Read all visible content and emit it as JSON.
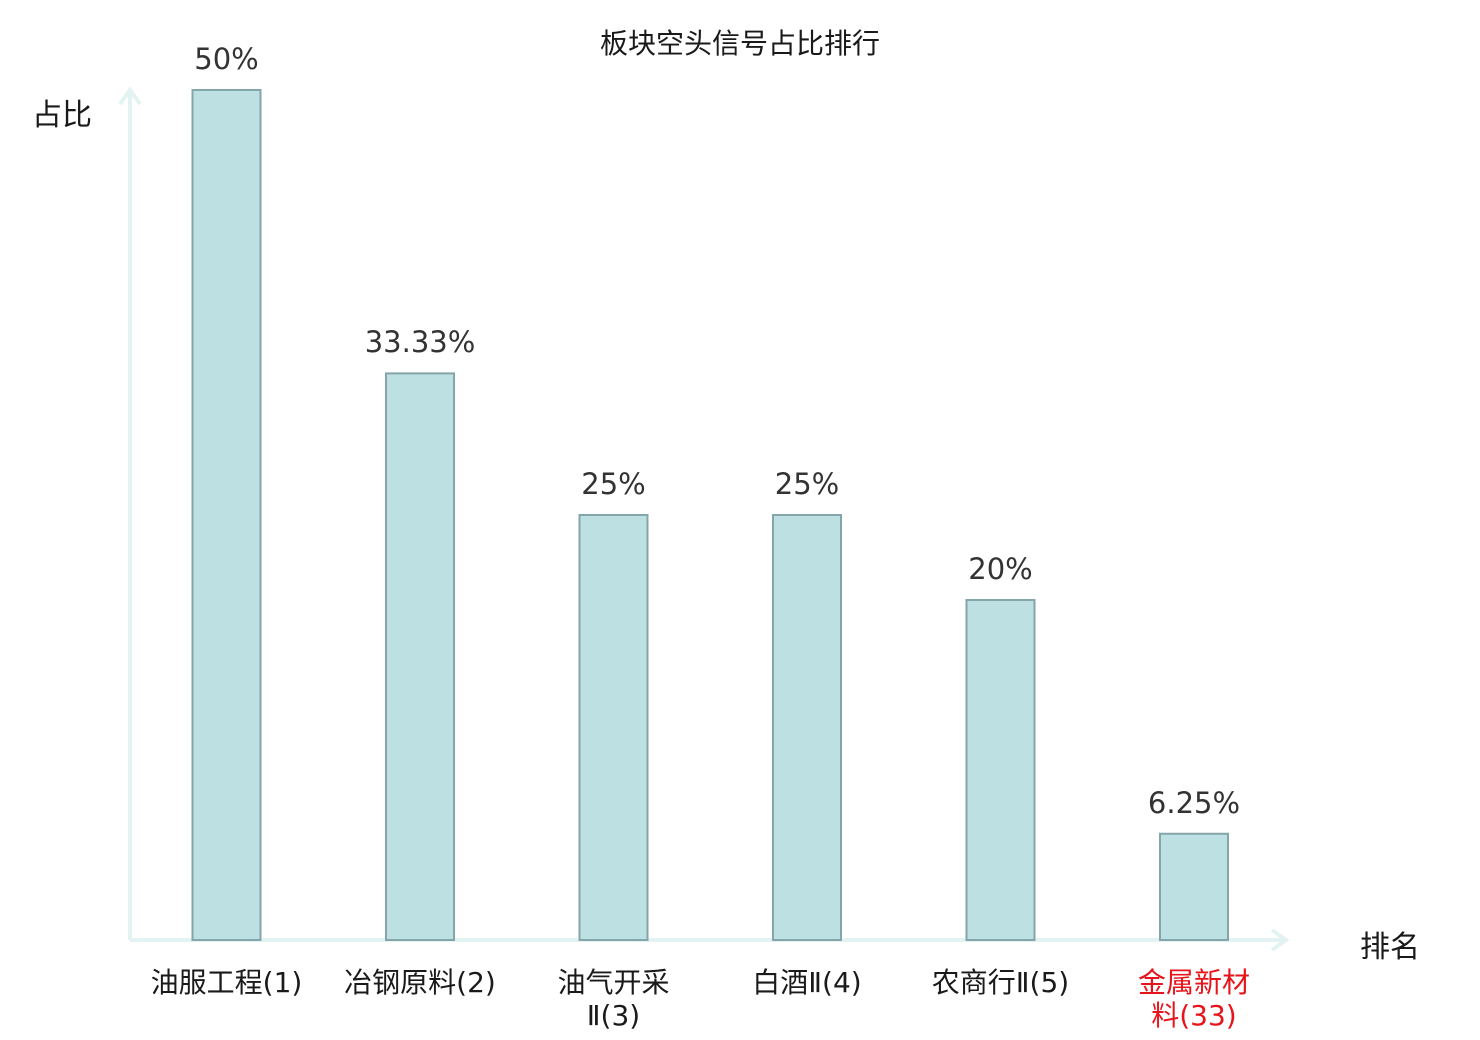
{
  "chart_data": {
    "type": "bar",
    "title": "板块空头信号占比排行",
    "ylabel": "占比",
    "xlabel": "排名",
    "categories": [
      "油服工程(1)",
      "冶钢原料(2)",
      "油气开采Ⅱ(3)",
      "白酒Ⅱ(4)",
      "农商行Ⅱ(5)",
      "金属新材料(33)"
    ],
    "category_lines": [
      [
        "油服工程(1)"
      ],
      [
        "冶钢原料(2)"
      ],
      [
        "油气开采",
        "Ⅱ(3)"
      ],
      [
        "白酒Ⅱ(4)"
      ],
      [
        "农商行Ⅱ(5)"
      ],
      [
        "金属新材",
        "料(33)"
      ]
    ],
    "values": [
      50,
      33.33,
      25,
      25,
      20,
      6.25
    ],
    "value_labels": [
      "50%",
      "33.33%",
      "25%",
      "25%",
      "20%",
      "6.25%"
    ],
    "highlight_index": 5,
    "ylim": [
      0,
      50
    ],
    "grid": false,
    "colors": {
      "bar_fill": "#bde0e3",
      "bar_stroke": "#84a6aa",
      "axis": "#e2f3f1",
      "highlight_text": "#e8141b",
      "text": "#1a1a1a"
    }
  }
}
